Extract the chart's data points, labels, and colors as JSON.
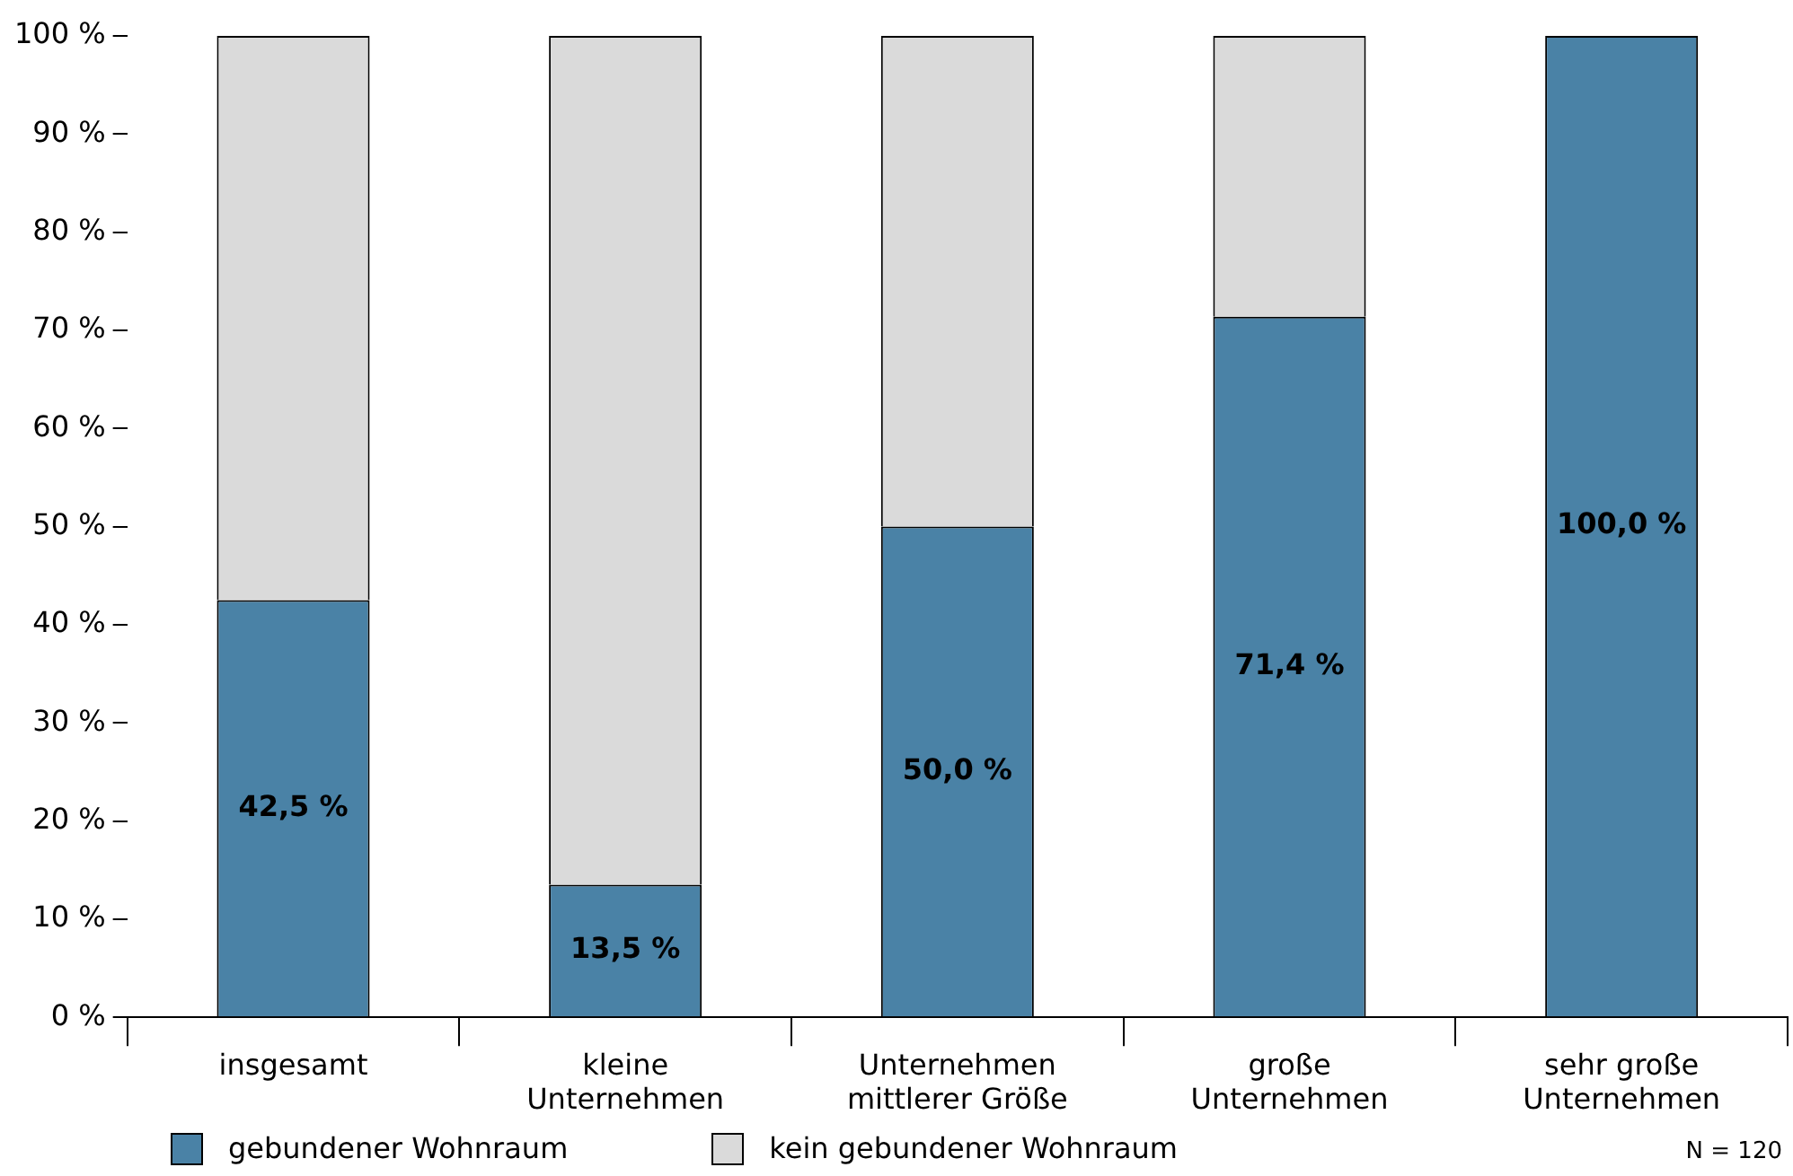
{
  "chart_data": {
    "type": "bar",
    "stacked": true,
    "categories": [
      "insgesamt",
      "kleine Unternehmen",
      "Unternehmen mittlerer Größe",
      "große Unternehmen",
      "sehr große Unternehmen"
    ],
    "series": [
      {
        "name": "gebundener Wohnraum",
        "color": "#4a82a6",
        "values": [
          42.5,
          13.5,
          50.0,
          71.4,
          100.0
        ],
        "value_labels": [
          "42,5 %",
          "13,5 %",
          "50,0 %",
          "71,4 %",
          "100,0 %"
        ]
      },
      {
        "name": "kein gebundener Wohnraum",
        "color": "#dadada",
        "values": [
          57.5,
          86.5,
          50.0,
          28.6,
          0
        ]
      }
    ],
    "ylim": [
      0,
      100
    ],
    "yticks": [
      {
        "value": 0,
        "label": "0 %"
      },
      {
        "value": 10,
        "label": "10 %"
      },
      {
        "value": 20,
        "label": "20 %"
      },
      {
        "value": 30,
        "label": "30 %"
      },
      {
        "value": 40,
        "label": "40 %"
      },
      {
        "value": 50,
        "label": "50 %"
      },
      {
        "value": 60,
        "label": "60 %"
      },
      {
        "value": 70,
        "label": "70 %"
      },
      {
        "value": 80,
        "label": "80 %"
      },
      {
        "value": 90,
        "label": "90 %"
      },
      {
        "value": 100,
        "label": "100 %"
      }
    ],
    "grid": false,
    "legend": "bottom left",
    "annotations": [
      "N = 120"
    ]
  }
}
